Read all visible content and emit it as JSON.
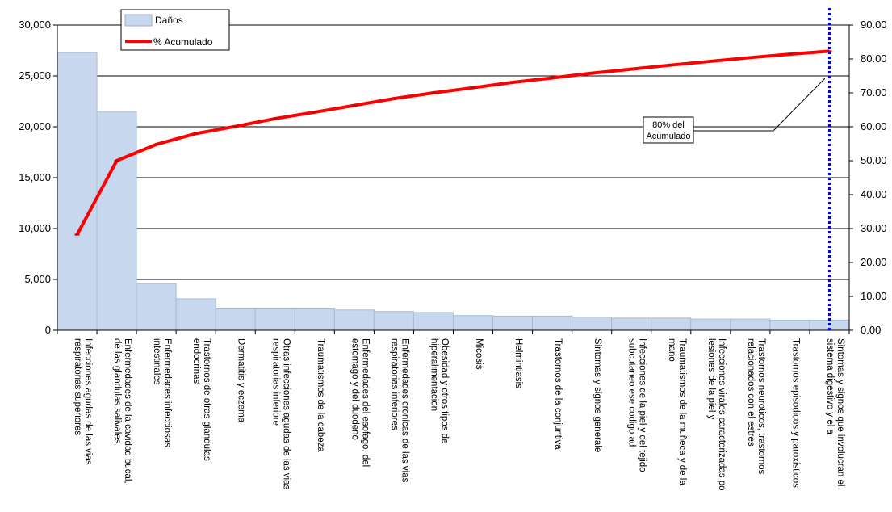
{
  "chart_data": {
    "type": "bar",
    "categories": [
      [
        "Infecciones agudas de las vias",
        "respiratorias superiores"
      ],
      [
        "Enfermedades de la cavidad bucal,",
        "de las glandulas salivales"
      ],
      [
        "Enfermedades infecciosas",
        "intestinales"
      ],
      [
        "Trastornos de otras glandulas",
        "endocrinas"
      ],
      [
        "Dermatitis y eczema"
      ],
      [
        "Otras infecciones agudas de las vias",
        "respiratorias inferiore"
      ],
      [
        "Traumatismos de la cabeza"
      ],
      [
        "Enfermedades del esofago, del",
        "estomago y del duodeno"
      ],
      [
        "Enfermedades cronicas de las vias",
        "respiratorias inferiores"
      ],
      [
        "Obesidad y otros tipos de",
        "hiperalimentacion"
      ],
      [
        "Micosis"
      ],
      [
        "Helmintiasis"
      ],
      [
        "Trastornos de la conjuntiva"
      ],
      [
        "Sintomas y signos generale"
      ],
      [
        "Infecciones de la piel y del tejido",
        "subcutaneo ese codigo ad"
      ],
      [
        "Traumatismos de la muñeca y de la",
        "mano"
      ],
      [
        "Infecciones virales caracterizadas po",
        "lesiones de la piel y"
      ],
      [
        "Trastornos neuroticos, trastornos",
        "relacionados con el estres"
      ],
      [
        "Trastornos episodicos y paroxisticos"
      ],
      [
        "Sintomas y signos que involucran el",
        "sistema digestivo y el a"
      ]
    ],
    "series": [
      {
        "name": "Daños",
        "kind": "bar",
        "axis": "left",
        "color": "#c6d7ee",
        "values": [
          27300,
          21500,
          4600,
          3100,
          2100,
          2100,
          2100,
          2000,
          1850,
          1750,
          1450,
          1400,
          1400,
          1300,
          1200,
          1200,
          1100,
          1100,
          1000,
          1000
        ]
      },
      {
        "name": "% Acumulado",
        "kind": "line",
        "axis": "right",
        "color": "#ff0000",
        "values": [
          28.2,
          50.0,
          54.8,
          58.0,
          60.1,
          62.4,
          64.3,
          66.3,
          68.3,
          70.0,
          71.5,
          73.1,
          74.4,
          75.8,
          77.0,
          78.2,
          79.3,
          80.4,
          81.4,
          82.3
        ]
      }
    ],
    "y_left": {
      "ylim": [
        0,
        30000
      ],
      "ticks": [
        "0",
        "5,000",
        "10,000",
        "15,000",
        "20,000",
        "25,000",
        "30,000"
      ],
      "tick_values": [
        0,
        5000,
        10000,
        15000,
        20000,
        25000,
        30000
      ]
    },
    "y_right": {
      "ylim": [
        0,
        90
      ],
      "ticks": [
        "0.00",
        "10.00",
        "20.00",
        "30.00",
        "40.00",
        "50.00",
        "60.00",
        "70.00",
        "80.00",
        "90.00"
      ],
      "tick_values": [
        0,
        10,
        20,
        30,
        40,
        50,
        60,
        70,
        80,
        90
      ]
    },
    "grid": true,
    "legend": "top-left",
    "annotation": {
      "text": [
        "80% del",
        "Acumulado"
      ],
      "color": "#000000"
    },
    "threshold_line": {
      "color": "#0000cc",
      "style": "dotted",
      "at_category_index": 19
    }
  }
}
